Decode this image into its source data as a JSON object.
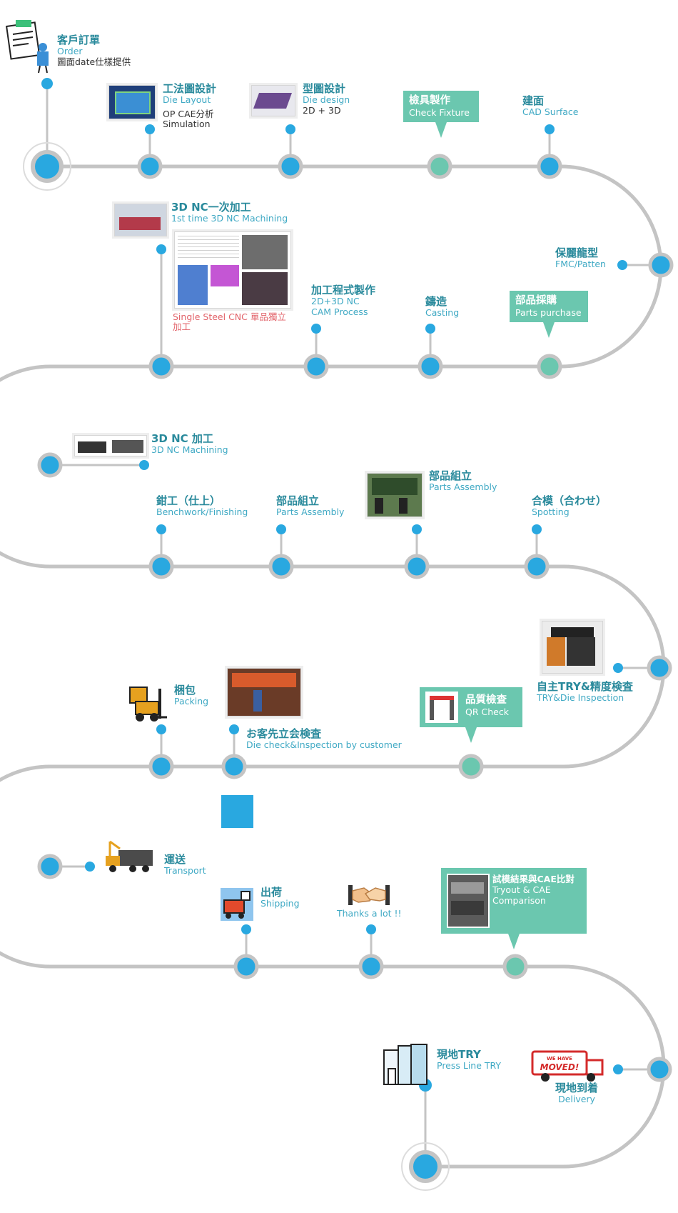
{
  "colors": {
    "road": "#c4c4c4",
    "node": "#29a8e0",
    "node_alt": "#6bc7af",
    "title": "#2a8a9c",
    "sub": "#3fa9c4",
    "highlight_box": "#6bc7af",
    "note_red": "#e2636a"
  },
  "steps": {
    "order": {
      "title": "客戶訂單",
      "sub": "Order",
      "note": "圖面date仕樣提供",
      "icon": "order-form-icon"
    },
    "die_layout": {
      "title": "工法圖設計",
      "sub": "Die Layout",
      "note1": "OP CAE分析",
      "note2": "Simulation"
    },
    "die_design": {
      "title": "型圖設計",
      "sub": "Die design",
      "note": "2D + 3D"
    },
    "check_fixture": {
      "title": "檢具製作",
      "sub": "Check Fixture"
    },
    "cad_surface": {
      "title": "建面",
      "sub": "CAD Surface"
    },
    "fmc": {
      "title": "保麗龍型",
      "sub": "FMC/Patten"
    },
    "nc_first": {
      "title": "3D NC一次加工",
      "sub": "1st time 3D NC Machining",
      "red_note": "Single Steel CNC 單品獨立加工"
    },
    "cam": {
      "title": "加工程式製作",
      "sub": "2D+3D NC",
      "sub2": "CAM Process"
    },
    "casting": {
      "title": "鑄造",
      "sub": "Casting"
    },
    "parts_purchase": {
      "title": "部品採購",
      "sub": "Parts purchase"
    },
    "nc_machining": {
      "title": "3D NC 加工",
      "sub": "3D NC Machining"
    },
    "benchwork": {
      "title": "鉗工（仕上）",
      "sub": "Benchwork/Finishing"
    },
    "parts_assembly_1": {
      "title": "部品組立",
      "sub": "Parts Assembly"
    },
    "parts_assembly_2": {
      "title": "部品組立",
      "sub": "Parts Assembly"
    },
    "spotting": {
      "title": "合模（合わせ）",
      "sub": "Spotting"
    },
    "try_inspection": {
      "title": "自主TRY&精度検査",
      "sub": "TRY&Die Inspection"
    },
    "qr_check": {
      "title": "品質檢查",
      "sub": "QR Check"
    },
    "customer_check": {
      "title": "お客先立会検査",
      "sub": "Die check&Inspection by customer"
    },
    "packing": {
      "title": "梱包",
      "sub": "Packing",
      "icon": "forklift-icon"
    },
    "transport": {
      "title": "運送",
      "sub": "Transport",
      "icon": "truck-icon"
    },
    "shipping": {
      "title": "出荷",
      "sub": "Shipping",
      "icon": "shipping-icon"
    },
    "thanks": {
      "title": "Thanks a lot !!",
      "icon": "handshake-icon"
    },
    "tryout": {
      "title": "試模結果與CAE比對",
      "sub": "Tryout & CAE",
      "sub2": "Comparison"
    },
    "press_line": {
      "title": "現地TRY",
      "sub": "Press Line TRY",
      "icon": "building-icon"
    },
    "delivery": {
      "title": "現地到着",
      "sub": "Delivery",
      "icon": "moving-truck-icon",
      "sign": "WE HAVE MOVED!"
    }
  }
}
